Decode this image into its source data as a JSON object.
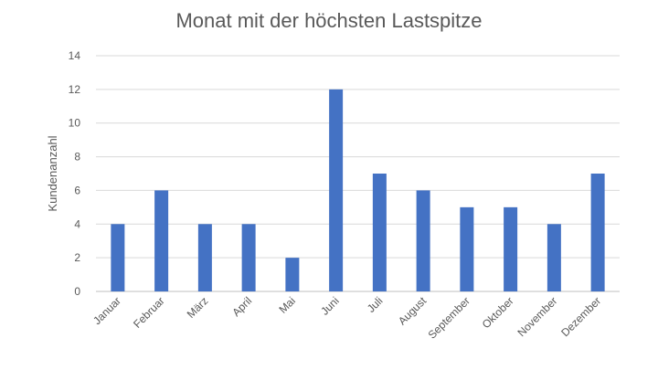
{
  "chart_data": {
    "type": "bar",
    "title": "Monat mit der höchsten Lastspitze",
    "xlabel": "",
    "ylabel": "Kundenanzahl",
    "categories": [
      "Januar",
      "Februar",
      "März",
      "April",
      "Mai",
      "Juni",
      "Juli",
      "August",
      "September",
      "Oktober",
      "November",
      "Dezember"
    ],
    "series": [
      {
        "name": "Kundenanzahl",
        "values": [
          4,
          6,
          4,
          4,
          2,
          12,
          7,
          6,
          5,
          5,
          4,
          7
        ]
      }
    ],
    "ylim": [
      0,
      14
    ],
    "yticks": [
      "0",
      "2",
      "4",
      "6",
      "8",
      "10",
      "12",
      "14"
    ],
    "grid": true,
    "legend": "none",
    "colors": {
      "bar": "#4472C4"
    }
  }
}
